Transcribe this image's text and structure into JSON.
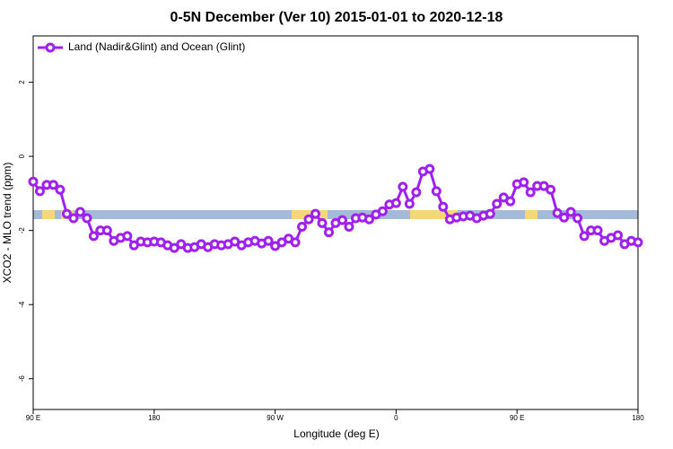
{
  "chart_data": {
    "type": "line",
    "title": "0-5N December (Ver 10)   2015-01-01 to 2020-12-18",
    "x_label": "Longitude (deg E)",
    "y_label": "XCO2 - MLO trend (ppm)",
    "legend": "top-left",
    "x": [
      90,
      95,
      100,
      105,
      110,
      115,
      120,
      125,
      130,
      135,
      140,
      145,
      150,
      155,
      160,
      165,
      170,
      175,
      180,
      185,
      190,
      195,
      200,
      205,
      210,
      215,
      220,
      225,
      230,
      235,
      240,
      245,
      250,
      255,
      260,
      265,
      270,
      275,
      280,
      285,
      290,
      295,
      300,
      305,
      310,
      315,
      320,
      325,
      330,
      335,
      340,
      345,
      350,
      355,
      360,
      365,
      370,
      375,
      380,
      385,
      390,
      395,
      400,
      405,
      410,
      415,
      420,
      425,
      430,
      435,
      440,
      445,
      450,
      455,
      460,
      465,
      470,
      475,
      480,
      485,
      490,
      495,
      500,
      505,
      510,
      515,
      520,
      525,
      530,
      535,
      540
    ],
    "series": [
      {
        "name": "Land (Nadir&Glint) and Ocean (Glint)",
        "color": "#a020f0",
        "values": [
          -0.68,
          -0.94,
          -0.77,
          -0.77,
          -0.9,
          -1.55,
          -1.67,
          -1.5,
          -1.67,
          -2.15,
          -2.0,
          -2.0,
          -2.28,
          -2.2,
          -2.15,
          -2.4,
          -2.3,
          -2.32,
          -2.3,
          -2.32,
          -2.4,
          -2.47,
          -2.37,
          -2.47,
          -2.45,
          -2.37,
          -2.45,
          -2.37,
          -2.4,
          -2.37,
          -2.3,
          -2.4,
          -2.32,
          -2.28,
          -2.35,
          -2.28,
          -2.42,
          -2.32,
          -2.22,
          -2.32,
          -1.9,
          -1.7,
          -1.55,
          -1.8,
          -2.05,
          -1.8,
          -1.72,
          -1.9,
          -1.67,
          -1.65,
          -1.7,
          -1.57,
          -1.48,
          -1.3,
          -1.26,
          -0.82,
          -1.28,
          -0.97,
          -0.41,
          -0.34,
          -0.94,
          -1.36,
          -1.7,
          -1.65,
          -1.62,
          -1.6,
          -1.67,
          -1.6,
          -1.55,
          -1.28,
          -1.11,
          -1.21,
          -0.75,
          -0.7,
          -0.97,
          -0.8,
          -0.8,
          -0.9,
          -1.53,
          -1.65,
          -1.5,
          -1.67,
          -2.15,
          -2.0,
          -2.0,
          -2.28,
          -2.2,
          -2.13,
          -2.37,
          -2.28,
          -2.32
        ]
      }
    ],
    "xlim": [
      90,
      540
    ],
    "xticks": [
      {
        "value": 90,
        "label": "90 E"
      },
      180,
      {
        "value": 270,
        "label": "90 W"
      },
      {
        "value": 360,
        "label": "0"
      },
      {
        "value": 450,
        "label": "90 E"
      },
      {
        "value": 540,
        "label": "180"
      }
    ],
    "ylim": [
      -6.83,
      3.25
    ],
    "yticks": [
      -6,
      -4,
      -2,
      0,
      2
    ]
  }
}
